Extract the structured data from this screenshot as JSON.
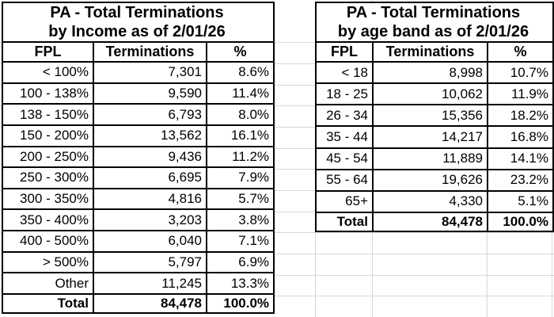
{
  "colors": {
    "background": "#ffffff",
    "table_border": "#000000",
    "gridline": "#d8d8d8",
    "text": "#000000"
  },
  "tables": [
    {
      "title_line1": "PA - Total Terminations",
      "title_line2": "by Income as of 2/01/26",
      "columns": [
        "FPL",
        "Terminations",
        "%"
      ],
      "rows": [
        [
          "< 100%",
          "7,301",
          "8.6%"
        ],
        [
          "100 - 138%",
          "9,590",
          "11.4%"
        ],
        [
          "138 - 150%",
          "6,793",
          "8.0%"
        ],
        [
          "150 - 200%",
          "13,562",
          "16.1%"
        ],
        [
          "200 - 250%",
          "9,436",
          "11.2%"
        ],
        [
          "250 - 300%",
          "6,695",
          "7.9%"
        ],
        [
          "300 - 350%",
          "4,816",
          "5.7%"
        ],
        [
          "350 - 400%",
          "3,203",
          "3.8%"
        ],
        [
          "400 - 500%",
          "6,040",
          "7.1%"
        ],
        [
          "> 500%",
          "5,797",
          "6.9%"
        ],
        [
          "Other",
          "11,245",
          "13.3%"
        ]
      ],
      "total": {
        "label": "Total",
        "terminations": "84,478",
        "pct": "100.0%"
      }
    },
    {
      "title_line1": "PA - Total Terminations",
      "title_line2": "by age band as of 2/01/26",
      "columns": [
        "FPL",
        "Terminations",
        "%"
      ],
      "rows": [
        [
          "< 18",
          "8,998",
          "10.7%"
        ],
        [
          "18 - 25",
          "10,062",
          "11.9%"
        ],
        [
          "26 - 34",
          "15,356",
          "18.2%"
        ],
        [
          "35 - 44",
          "14,217",
          "16.8%"
        ],
        [
          "45 - 54",
          "11,889",
          "14.1%"
        ],
        [
          "55 - 64",
          "19,626",
          "23.2%"
        ],
        [
          "65+",
          "4,330",
          "5.1%"
        ]
      ],
      "total": {
        "label": "Total",
        "terminations": "84,478",
        "pct": "100.0%"
      }
    }
  ]
}
